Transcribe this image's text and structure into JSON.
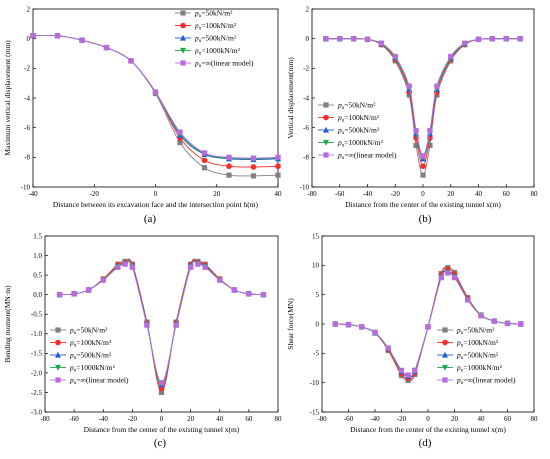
{
  "chart_data": [
    {
      "type": "line",
      "panel_label": "(a)",
      "xlabel": "Distance between its excavation face and the intersection point h(m)",
      "ylabel": "Maximum vertical displacement (mm)",
      "xlim": [
        -40,
        40
      ],
      "ylim": [
        -10,
        2
      ],
      "xticks": [
        -40,
        -20,
        0,
        20,
        40
      ],
      "yticks": [
        -10,
        -8,
        -6,
        -4,
        -2,
        0,
        2
      ],
      "legend_position": "top-right",
      "legend_entries": [
        "pu=50kN/m²",
        "pu=100kN/m²",
        "pu=500kN/m²",
        "pu=1000kN/m²",
        "pu=∞(linear model)"
      ],
      "x": [
        -40,
        -32,
        -24,
        -16,
        -8,
        0,
        8,
        16,
        24,
        32,
        40
      ],
      "series": [
        {
          "name": "pu=50kN/m²",
          "values": [
            0.2,
            0.2,
            -0.1,
            -0.6,
            -1.5,
            -3.7,
            -7.0,
            -8.7,
            -9.2,
            -9.25,
            -9.2
          ]
        },
        {
          "name": "pu=100kN/m²",
          "values": [
            0.2,
            0.2,
            -0.1,
            -0.6,
            -1.5,
            -3.6,
            -6.7,
            -8.2,
            -8.6,
            -8.65,
            -8.6
          ]
        },
        {
          "name": "pu=500kN/m²",
          "values": [
            0.2,
            0.2,
            -0.1,
            -0.6,
            -1.5,
            -3.6,
            -6.5,
            -7.8,
            -8.1,
            -8.15,
            -8.1
          ]
        },
        {
          "name": "pu=1000kN/m²",
          "values": [
            0.2,
            0.2,
            -0.1,
            -0.6,
            -1.5,
            -3.6,
            -6.4,
            -7.75,
            -8.05,
            -8.1,
            -8.05
          ]
        },
        {
          "name": "pu=∞(linear model)",
          "values": [
            0.2,
            0.2,
            -0.1,
            -0.6,
            -1.5,
            -3.6,
            -6.3,
            -7.7,
            -8.0,
            -8.05,
            -8.0
          ]
        }
      ]
    },
    {
      "type": "line",
      "panel_label": "(b)",
      "xlabel": "Distance from the center of the existing tunnel x(m)",
      "ylabel": "Vertical displacement(mm)",
      "xlim": [
        -80,
        80
      ],
      "ylim": [
        -10,
        2
      ],
      "xticks": [
        -80,
        -60,
        -40,
        -20,
        0,
        20,
        40,
        60,
        80
      ],
      "yticks": [
        -10,
        -8,
        -6,
        -4,
        -2,
        0,
        2
      ],
      "legend_position": "bottom-left",
      "legend_entries": [
        "pu=50kN/m²",
        "pu=100kN/m²",
        "pu=500kN/m²",
        "pu=1000kN/m²",
        "pu=∞(linear model)"
      ],
      "x": [
        -70,
        -60,
        -50,
        -40,
        -30,
        -20,
        -10,
        -5,
        0,
        5,
        10,
        20,
        30,
        40,
        50,
        60,
        70
      ],
      "series": [
        {
          "name": "pu=50kN/m²",
          "values": [
            0,
            0,
            0,
            -0.05,
            -0.4,
            -1.5,
            -3.8,
            -7.2,
            -9.2,
            -7.2,
            -3.8,
            -1.5,
            -0.4,
            -0.05,
            0,
            0,
            0
          ]
        },
        {
          "name": "pu=100kN/m²",
          "values": [
            0,
            0,
            0,
            -0.05,
            -0.4,
            -1.4,
            -3.6,
            -6.7,
            -8.6,
            -6.7,
            -3.6,
            -1.4,
            -0.4,
            -0.05,
            0,
            0,
            0
          ]
        },
        {
          "name": "pu=500kN/m²",
          "values": [
            0,
            0,
            0,
            -0.05,
            -0.35,
            -1.3,
            -3.4,
            -6.4,
            -8.1,
            -6.4,
            -3.4,
            -1.3,
            -0.35,
            -0.05,
            0,
            0,
            0
          ]
        },
        {
          "name": "pu=1000kN/m²",
          "values": [
            0,
            0,
            0,
            -0.05,
            -0.35,
            -1.3,
            -3.3,
            -6.3,
            -8.0,
            -6.3,
            -3.3,
            -1.3,
            -0.35,
            -0.05,
            0,
            0,
            0
          ]
        },
        {
          "name": "pu=∞(linear model)",
          "values": [
            0,
            0,
            0,
            -0.05,
            -0.3,
            -1.2,
            -3.2,
            -6.2,
            -7.9,
            -6.2,
            -3.2,
            -1.2,
            -0.3,
            -0.05,
            0,
            0,
            0
          ]
        }
      ]
    },
    {
      "type": "line",
      "panel_label": "(c)",
      "xlabel": "Distance from the center of the existing tunnel x(m)",
      "ylabel": "Bending moment(MN·m)",
      "xlim": [
        -80,
        80
      ],
      "ylim": [
        -3.0,
        1.5
      ],
      "xticks": [
        -80,
        -60,
        -40,
        -20,
        0,
        20,
        40,
        60,
        80
      ],
      "yticks": [
        -3.0,
        -2.5,
        -2.0,
        -1.5,
        -1.0,
        -0.5,
        0.0,
        0.5,
        1.0,
        1.5
      ],
      "legend_position": "bottom-left",
      "legend_entries": [
        "pu=50kN/m²",
        "pu=100kN/m²",
        "pu=500kN/m²",
        "pu=1000kN/m²",
        "pu=∞(linear model)"
      ],
      "x": [
        -70,
        -60,
        -50,
        -40,
        -30,
        -25,
        -20,
        -10,
        0,
        10,
        20,
        25,
        30,
        40,
        50,
        60,
        70
      ],
      "series": [
        {
          "name": "pu=50kN/m²",
          "values": [
            0,
            0.02,
            0.12,
            0.4,
            0.78,
            0.85,
            0.78,
            -0.7,
            -2.5,
            -0.7,
            0.78,
            0.85,
            0.78,
            0.4,
            0.12,
            0.02,
            0
          ]
        },
        {
          "name": "pu=100kN/m²",
          "values": [
            0,
            0.02,
            0.12,
            0.4,
            0.76,
            0.82,
            0.76,
            -0.72,
            -2.4,
            -0.72,
            0.76,
            0.82,
            0.76,
            0.4,
            0.12,
            0.02,
            0
          ]
        },
        {
          "name": "pu=500kN/m²",
          "values": [
            0,
            0.02,
            0.12,
            0.38,
            0.73,
            0.8,
            0.73,
            -0.75,
            -2.3,
            -0.75,
            0.73,
            0.8,
            0.73,
            0.38,
            0.12,
            0.02,
            0
          ]
        },
        {
          "name": "pu=1000kN/m²",
          "values": [
            0,
            0.02,
            0.12,
            0.38,
            0.72,
            0.79,
            0.72,
            -0.76,
            -2.28,
            -0.76,
            0.72,
            0.79,
            0.72,
            0.38,
            0.12,
            0.02,
            0
          ]
        },
        {
          "name": "pu=∞(linear model)",
          "values": [
            0,
            0.02,
            0.12,
            0.37,
            0.7,
            0.78,
            0.7,
            -0.78,
            -2.25,
            -0.78,
            0.7,
            0.78,
            0.7,
            0.37,
            0.12,
            0.02,
            0
          ]
        }
      ]
    },
    {
      "type": "line",
      "panel_label": "(d)",
      "xlabel": "Distance from the center of the existing tunnel x(m)",
      "ylabel": "Shear force(MN)",
      "xlim": [
        -80,
        80
      ],
      "ylim": [
        -15,
        15
      ],
      "xticks": [
        -80,
        -60,
        -40,
        -20,
        0,
        20,
        40,
        60,
        80
      ],
      "yticks": [
        -15,
        -10,
        -5,
        0,
        5,
        10,
        15
      ],
      "legend_position": "bottom-right",
      "legend_entries": [
        "pu=50kN/m²",
        "pu=100kN/m²",
        "pu=500kN/m²",
        "pu=1000kN/m²",
        "pu=∞(linear model)"
      ],
      "x": [
        -70,
        -60,
        -50,
        -40,
        -30,
        -20,
        -15,
        -10,
        0,
        10,
        15,
        20,
        30,
        40,
        50,
        60,
        70
      ],
      "series": [
        {
          "name": "pu=50kN/m²",
          "values": [
            0,
            -0.1,
            -0.5,
            -1.5,
            -4.5,
            -8.8,
            -9.6,
            -8.6,
            -0.5,
            8.6,
            9.6,
            8.8,
            4.5,
            1.5,
            0.5,
            0.1,
            0
          ]
        },
        {
          "name": "pu=100kN/m²",
          "values": [
            0,
            -0.1,
            -0.5,
            -1.5,
            -4.4,
            -8.5,
            -9.3,
            -8.4,
            -0.5,
            8.4,
            9.3,
            8.5,
            4.4,
            1.5,
            0.5,
            0.1,
            0
          ]
        },
        {
          "name": "pu=500kN/m²",
          "values": [
            0,
            -0.1,
            -0.5,
            -1.5,
            -4.2,
            -8.1,
            -8.9,
            -8.1,
            -0.5,
            8.1,
            8.9,
            8.1,
            4.2,
            1.5,
            0.5,
            0.1,
            0
          ]
        },
        {
          "name": "pu=1000kN/m²",
          "values": [
            0,
            -0.1,
            -0.5,
            -1.5,
            -4.15,
            -8.0,
            -8.8,
            -8.0,
            -0.5,
            8.0,
            8.8,
            8.0,
            4.15,
            1.5,
            0.5,
            0.1,
            0
          ]
        },
        {
          "name": "pu=∞(linear model)",
          "values": [
            0,
            -0.1,
            -0.5,
            -1.4,
            -4.1,
            -7.9,
            -8.7,
            -7.9,
            -0.5,
            7.9,
            8.7,
            7.9,
            4.1,
            1.4,
            0.5,
            0.1,
            0
          ]
        }
      ]
    }
  ],
  "style": {
    "series_colors": [
      "#808080",
      "#ff2a2a",
      "#1f5fd6",
      "#1fa84a",
      "#b86be0"
    ],
    "series_markers": [
      "square",
      "circle",
      "triangle-up",
      "triangle-down",
      "square"
    ]
  }
}
